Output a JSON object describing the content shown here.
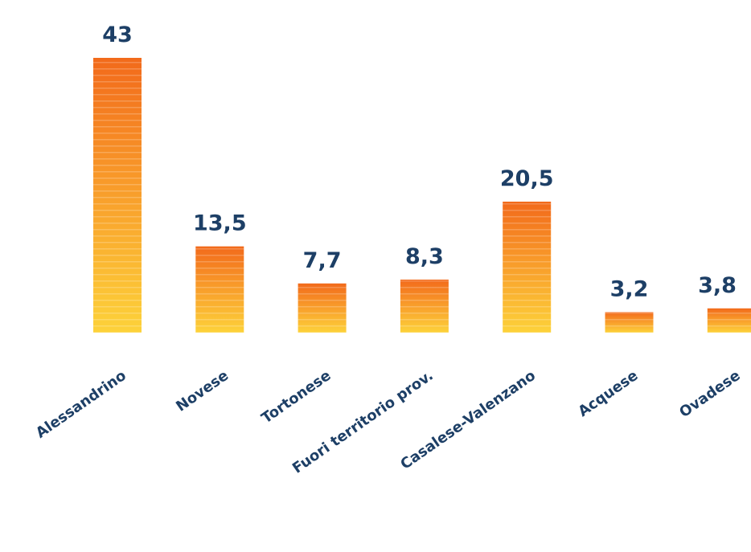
{
  "chart_data": {
    "type": "bar",
    "title": "",
    "xlabel": "",
    "ylabel": "",
    "categories": [
      "Alessandrino",
      "Novese",
      "Tortonese",
      "Fuori territorio prov.",
      "Casalese-Valenzano",
      "Acquese",
      "Ovadese"
    ],
    "values": [
      43,
      13.5,
      7.7,
      8.3,
      20.5,
      3.2,
      3.8
    ],
    "value_labels": [
      "43",
      "13,5",
      "7,7",
      "8,3",
      "20,5",
      "3,2",
      "3,8"
    ],
    "ylim": [
      0,
      43
    ],
    "grid": false,
    "legend": "none",
    "colors": {
      "bar_top": "#f26a1b",
      "bar_mid": "#f89a2a",
      "bar_bottom": "#fdd23a",
      "stripe": "#ffffff",
      "text": "#1d3f66"
    }
  }
}
